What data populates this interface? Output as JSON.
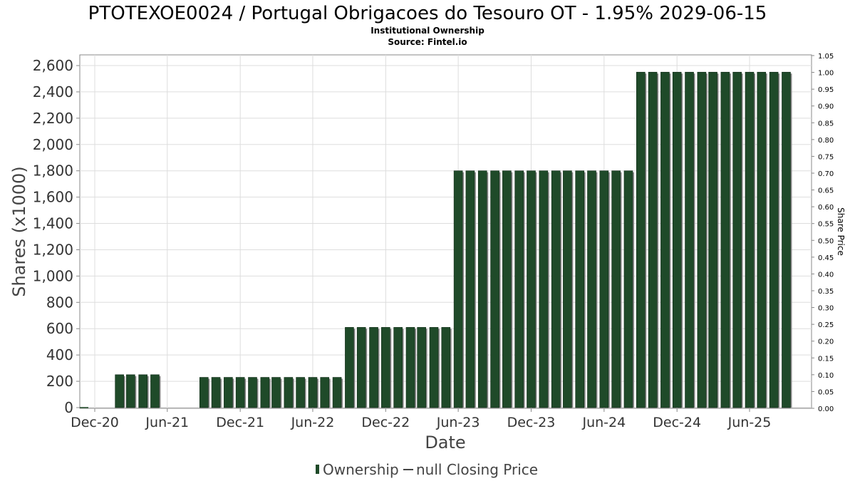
{
  "colors": {
    "bar": "#1f4a29",
    "bar_shadow": "#8a8a8a",
    "grid": "#dddddd",
    "plot_border": "#888888"
  },
  "chart_data": {
    "type": "bar",
    "title": "PTOTEXOE0024 / Portugal Obrigacoes do Tesouro OT - 1.95% 2029-06-15",
    "subtitle_1": "Institutional Ownership",
    "subtitle_2": "Source: Fintel.io",
    "xlabel": "Date",
    "ylabel": "Shares (x1000)",
    "y2label": "Share Price",
    "ylim": [
      0,
      2700
    ],
    "y2lim": [
      0,
      1.05
    ],
    "grid": true,
    "legend_position": "bottom",
    "yticks": [
      "0",
      "200",
      "400",
      "600",
      "800",
      "1,000",
      "1,200",
      "1,400",
      "1,600",
      "1,800",
      "2,000",
      "2,200",
      "2,400",
      "2,600"
    ],
    "y2ticks": [
      "0.00",
      "0.05",
      "0.10",
      "0.15",
      "0.20",
      "0.25",
      "0.30",
      "0.35",
      "0.40",
      "0.45",
      "0.50",
      "0.55",
      "0.60",
      "0.65",
      "0.70",
      "0.75",
      "0.80",
      "0.85",
      "0.90",
      "0.95",
      "1.00",
      "1.05"
    ],
    "xticks": [
      {
        "label": "Dec-20",
        "date": "2020-12-01"
      },
      {
        "label": "Jun-21",
        "date": "2021-06-01"
      },
      {
        "label": "Dec-21",
        "date": "2021-12-01"
      },
      {
        "label": "Jun-22",
        "date": "2022-06-01"
      },
      {
        "label": "Dec-22",
        "date": "2022-12-01"
      },
      {
        "label": "Jun-23",
        "date": "2023-06-01"
      },
      {
        "label": "Dec-23",
        "date": "2023-12-01"
      },
      {
        "label": "Jun-24",
        "date": "2024-06-01"
      },
      {
        "label": "Dec-24",
        "date": "2024-12-01"
      },
      {
        "label": "Jun-25",
        "date": "2025-06-01"
      }
    ],
    "series": [
      {
        "name": "Ownership",
        "points": [
          {
            "date": "2021-02-01",
            "value": 250
          },
          {
            "date": "2021-03-01",
            "value": 250
          },
          {
            "date": "2021-04-01",
            "value": 250
          },
          {
            "date": "2021-05-01",
            "value": 250
          },
          {
            "date": "2021-09-01",
            "value": 230
          },
          {
            "date": "2021-10-01",
            "value": 230
          },
          {
            "date": "2021-11-01",
            "value": 230
          },
          {
            "date": "2021-12-01",
            "value": 230
          },
          {
            "date": "2022-01-01",
            "value": 230
          },
          {
            "date": "2022-02-01",
            "value": 230
          },
          {
            "date": "2022-03-01",
            "value": 230
          },
          {
            "date": "2022-04-01",
            "value": 230
          },
          {
            "date": "2022-05-01",
            "value": 230
          },
          {
            "date": "2022-06-01",
            "value": 230
          },
          {
            "date": "2022-07-01",
            "value": 230
          },
          {
            "date": "2022-08-01",
            "value": 230
          },
          {
            "date": "2022-09-01",
            "value": 610
          },
          {
            "date": "2022-10-01",
            "value": 610
          },
          {
            "date": "2022-11-01",
            "value": 610
          },
          {
            "date": "2022-12-01",
            "value": 610
          },
          {
            "date": "2023-01-01",
            "value": 610
          },
          {
            "date": "2023-02-01",
            "value": 610
          },
          {
            "date": "2023-03-01",
            "value": 610
          },
          {
            "date": "2023-04-01",
            "value": 610
          },
          {
            "date": "2023-05-01",
            "value": 610
          },
          {
            "date": "2023-06-01",
            "value": 1800
          },
          {
            "date": "2023-07-01",
            "value": 1800
          },
          {
            "date": "2023-08-01",
            "value": 1800
          },
          {
            "date": "2023-09-01",
            "value": 1800
          },
          {
            "date": "2023-10-01",
            "value": 1800
          },
          {
            "date": "2023-11-01",
            "value": 1800
          },
          {
            "date": "2023-12-01",
            "value": 1800
          },
          {
            "date": "2024-01-01",
            "value": 1800
          },
          {
            "date": "2024-02-01",
            "value": 1800
          },
          {
            "date": "2024-03-01",
            "value": 1800
          },
          {
            "date": "2024-04-01",
            "value": 1800
          },
          {
            "date": "2024-05-01",
            "value": 1800
          },
          {
            "date": "2024-06-01",
            "value": 1800
          },
          {
            "date": "2024-07-01",
            "value": 1800
          },
          {
            "date": "2024-08-01",
            "value": 1800
          },
          {
            "date": "2024-09-01",
            "value": 2550
          },
          {
            "date": "2024-10-01",
            "value": 2550
          },
          {
            "date": "2024-11-01",
            "value": 2550
          },
          {
            "date": "2024-12-01",
            "value": 2550
          },
          {
            "date": "2025-01-01",
            "value": 2550
          },
          {
            "date": "2025-02-01",
            "value": 2550
          },
          {
            "date": "2025-03-01",
            "value": 2550
          },
          {
            "date": "2025-04-01",
            "value": 2550
          },
          {
            "date": "2025-05-01",
            "value": 2550
          },
          {
            "date": "2025-06-01",
            "value": 2550
          },
          {
            "date": "2025-07-01",
            "value": 2550
          },
          {
            "date": "2025-08-01",
            "value": 2550
          },
          {
            "date": "2025-09-01",
            "value": 2550
          }
        ]
      },
      {
        "name": "null Closing Price",
        "points": []
      }
    ],
    "legend": [
      "Ownership",
      "null Closing Price"
    ]
  }
}
